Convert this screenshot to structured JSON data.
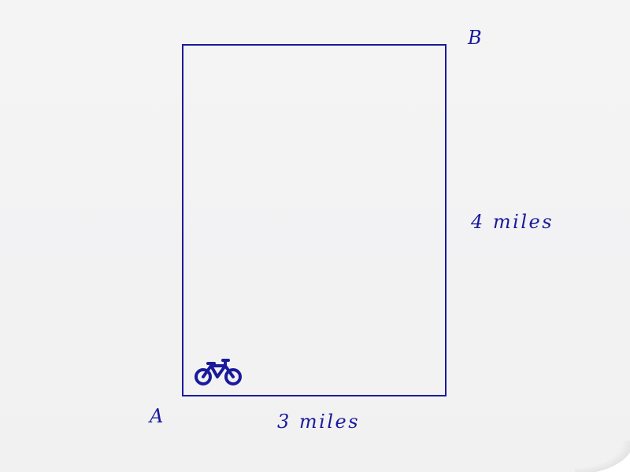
{
  "diagram": {
    "corner_a": "A",
    "corner_b": "B",
    "side_right_label": "4 miles",
    "side_bottom_label": "3 miles",
    "icon": "bicycle-icon",
    "stroke_color": "#1a1a9c"
  }
}
